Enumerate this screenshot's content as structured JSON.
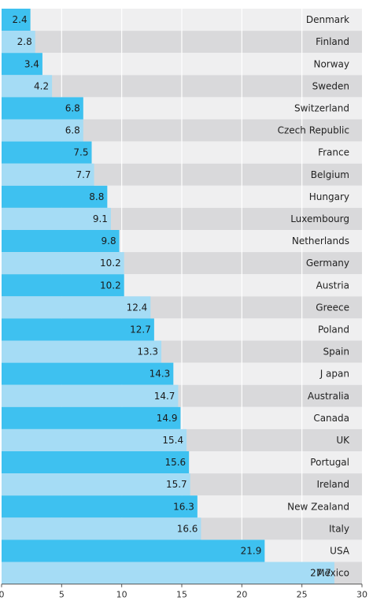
{
  "chart_data": {
    "type": "bar",
    "orientation": "horizontal",
    "title": "",
    "xlabel": "",
    "ylabel": "",
    "xlim": [
      0,
      30
    ],
    "xticks": [
      "0",
      "5",
      "10",
      "15",
      "20",
      "25",
      "30"
    ],
    "grid": true,
    "categories": [
      "Denmark",
      "Finland",
      "Norway",
      "Sweden",
      "Switzerland",
      "Czech Republic",
      "France",
      "Belgium",
      "Hungary",
      "Luxembourg",
      "Netherlands",
      "Germany",
      "Austria",
      "Greece",
      "Poland",
      "Spain",
      "J apan",
      "Australia",
      "Canada",
      "UK",
      "Portugal",
      "Ireland",
      "New Zealand",
      "Italy",
      "USA",
      "Mexico"
    ],
    "values": [
      2.4,
      2.8,
      3.4,
      4.2,
      6.8,
      6.8,
      7.5,
      7.7,
      8.8,
      9.1,
      9.8,
      10.2,
      10.2,
      12.4,
      12.7,
      13.3,
      14.3,
      14.7,
      14.9,
      15.4,
      15.6,
      15.7,
      16.3,
      16.6,
      21.9,
      27.7
    ],
    "value_labels": [
      "2.4",
      "2.8",
      "3.4",
      "4.2",
      "6.8",
      "6.8",
      "7.5",
      "7.7",
      "8.8",
      "9.1",
      "9.8",
      "10.2",
      "10.2",
      "12.4",
      "12.7",
      "13.3",
      "14.3",
      "14.7",
      "14.9",
      "15.4",
      "15.6",
      "15.7",
      "16.3",
      "16.6",
      "21.9",
      "27.7"
    ],
    "colors": {
      "bar_dark": "#3ec1f0",
      "bar_light": "#a5dcf5",
      "band_light": "#efeff0",
      "band_dark": "#d9d9db",
      "grid": "#ffffff",
      "axis": "#555555"
    }
  }
}
